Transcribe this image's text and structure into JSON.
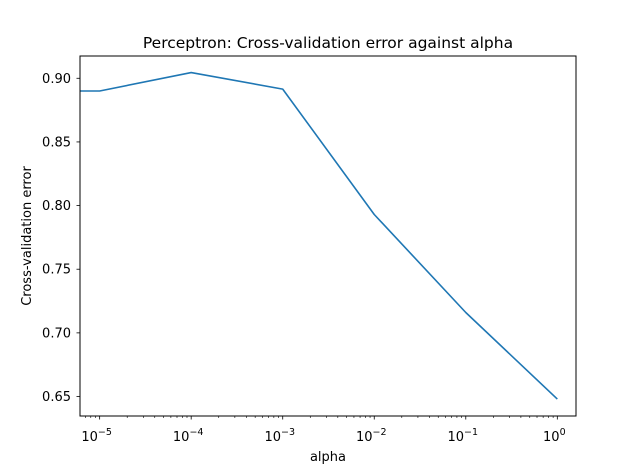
{
  "chart_data": {
    "type": "line",
    "title": "Perceptron: Cross-validation error against alpha",
    "xlabel": "alpha",
    "ylabel": "Cross-validation error",
    "x_scale": "log",
    "xlim": [
      6.1e-06,
      1.6
    ],
    "ylim": [
      0.6347,
      0.9175
    ],
    "grid": false,
    "legend": "none",
    "x_ticks": [
      {
        "value": 1e-05,
        "base": "10",
        "exponent": "−5"
      },
      {
        "value": 0.0001,
        "base": "10",
        "exponent": "−4"
      },
      {
        "value": 0.001,
        "base": "10",
        "exponent": "−3"
      },
      {
        "value": 0.01,
        "base": "10",
        "exponent": "−2"
      },
      {
        "value": 0.1,
        "base": "10",
        "exponent": "−1"
      },
      {
        "value": 1,
        "base": "10",
        "exponent": "0"
      }
    ],
    "y_ticks": [
      {
        "value": 0.65,
        "label": "0.65"
      },
      {
        "value": 0.7,
        "label": "0.70"
      },
      {
        "value": 0.75,
        "label": "0.75"
      },
      {
        "value": 0.8,
        "label": "0.80"
      },
      {
        "value": 0.85,
        "label": "0.85"
      },
      {
        "value": 0.9,
        "label": "0.90"
      }
    ],
    "series": [
      {
        "color": "#1f77b4",
        "x": [
          1e-06,
          1e-05,
          0.0001,
          0.001,
          0.01,
          0.1,
          1
        ],
        "y": [
          0.89,
          0.89,
          0.9045,
          0.8915,
          0.793,
          0.716,
          0.648
        ]
      }
    ]
  }
}
